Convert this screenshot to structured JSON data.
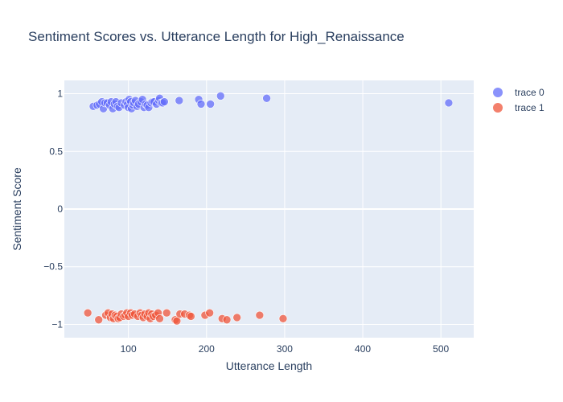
{
  "chart_data": {
    "type": "scatter",
    "title": "Sentiment Scores vs. Utterance Length for High_Renaissance",
    "xlabel": "Utterance Length",
    "ylabel": "Sentiment Score",
    "xlim": [
      18,
      542
    ],
    "ylim": [
      -1.115,
      1.115
    ],
    "x_ticks": [
      100,
      200,
      300,
      400,
      500
    ],
    "y_ticks": [
      1,
      0.5,
      0,
      -0.5,
      -1
    ],
    "x_tick_labels": [
      "100",
      "200",
      "300",
      "400",
      "500"
    ],
    "y_tick_labels": [
      "1",
      "0.5",
      "0",
      "−0.5",
      "−1"
    ],
    "grid": true,
    "legend_position": "top-right",
    "colors": {
      "trace 0": "#636efa",
      "trace 1": "#ef553b",
      "plot_bg": "#e5ecf6",
      "text": "#2a3f5f"
    },
    "series": [
      {
        "name": "trace 0",
        "points": [
          [
            55,
            0.89
          ],
          [
            60,
            0.9
          ],
          [
            63,
            0.91
          ],
          [
            66,
            0.93
          ],
          [
            68,
            0.87
          ],
          [
            70,
            0.92
          ],
          [
            73,
            0.92
          ],
          [
            76,
            0.9
          ],
          [
            78,
            0.93
          ],
          [
            80,
            0.87
          ],
          [
            82,
            0.91
          ],
          [
            84,
            0.93
          ],
          [
            86,
            0.89
          ],
          [
            88,
            0.88
          ],
          [
            91,
            0.92
          ],
          [
            95,
            0.9
          ],
          [
            97,
            0.93
          ],
          [
            99,
            0.91
          ],
          [
            100,
            0.88
          ],
          [
            101,
            0.95
          ],
          [
            103,
            0.93
          ],
          [
            104,
            0.87
          ],
          [
            106,
            0.9
          ],
          [
            107,
            0.92
          ],
          [
            109,
            0.94
          ],
          [
            111,
            0.89
          ],
          [
            113,
            0.91
          ],
          [
            116,
            0.93
          ],
          [
            118,
            0.95
          ],
          [
            120,
            0.88
          ],
          [
            122,
            0.91
          ],
          [
            124,
            0.9
          ],
          [
            126,
            0.88
          ],
          [
            129,
            0.92
          ],
          [
            131,
            0.93
          ],
          [
            133,
            0.93
          ],
          [
            136,
            0.91
          ],
          [
            139,
            0.94
          ],
          [
            140,
            0.96
          ],
          [
            142,
            0.92
          ],
          [
            144,
            0.92
          ],
          [
            146,
            0.93
          ],
          [
            165,
            0.94
          ],
          [
            190,
            0.95
          ],
          [
            193,
            0.91
          ],
          [
            205,
            0.91
          ],
          [
            218,
            0.98
          ],
          [
            277,
            0.96
          ],
          [
            510,
            0.92
          ]
        ]
      },
      {
        "name": "trace 1",
        "points": [
          [
            48,
            -0.9
          ],
          [
            62,
            -0.96
          ],
          [
            71,
            -0.92
          ],
          [
            74,
            -0.9
          ],
          [
            77,
            -0.94
          ],
          [
            79,
            -0.91
          ],
          [
            81,
            -0.95
          ],
          [
            83,
            -0.92
          ],
          [
            85,
            -0.93
          ],
          [
            87,
            -0.95
          ],
          [
            89,
            -0.94
          ],
          [
            91,
            -0.91
          ],
          [
            94,
            -0.93
          ],
          [
            96,
            -0.92
          ],
          [
            98,
            -0.9
          ],
          [
            100,
            -0.93
          ],
          [
            103,
            -0.9
          ],
          [
            105,
            -0.92
          ],
          [
            108,
            -0.91
          ],
          [
            112,
            -0.93
          ],
          [
            115,
            -0.9
          ],
          [
            117,
            -0.92
          ],
          [
            119,
            -0.94
          ],
          [
            121,
            -0.91
          ],
          [
            124,
            -0.93
          ],
          [
            126,
            -0.9
          ],
          [
            128,
            -0.95
          ],
          [
            130,
            -0.91
          ],
          [
            132,
            -0.93
          ],
          [
            135,
            -0.92
          ],
          [
            138,
            -0.9
          ],
          [
            140,
            -0.95
          ],
          [
            149,
            -0.9
          ],
          [
            160,
            -0.96
          ],
          [
            162,
            -0.97
          ],
          [
            166,
            -0.91
          ],
          [
            172,
            -0.91
          ],
          [
            178,
            -0.92
          ],
          [
            180,
            -0.93
          ],
          [
            198,
            -0.92
          ],
          [
            204,
            -0.9
          ],
          [
            220,
            -0.95
          ],
          [
            226,
            -0.96
          ],
          [
            239,
            -0.94
          ],
          [
            268,
            -0.92
          ],
          [
            298,
            -0.95
          ]
        ]
      }
    ]
  }
}
